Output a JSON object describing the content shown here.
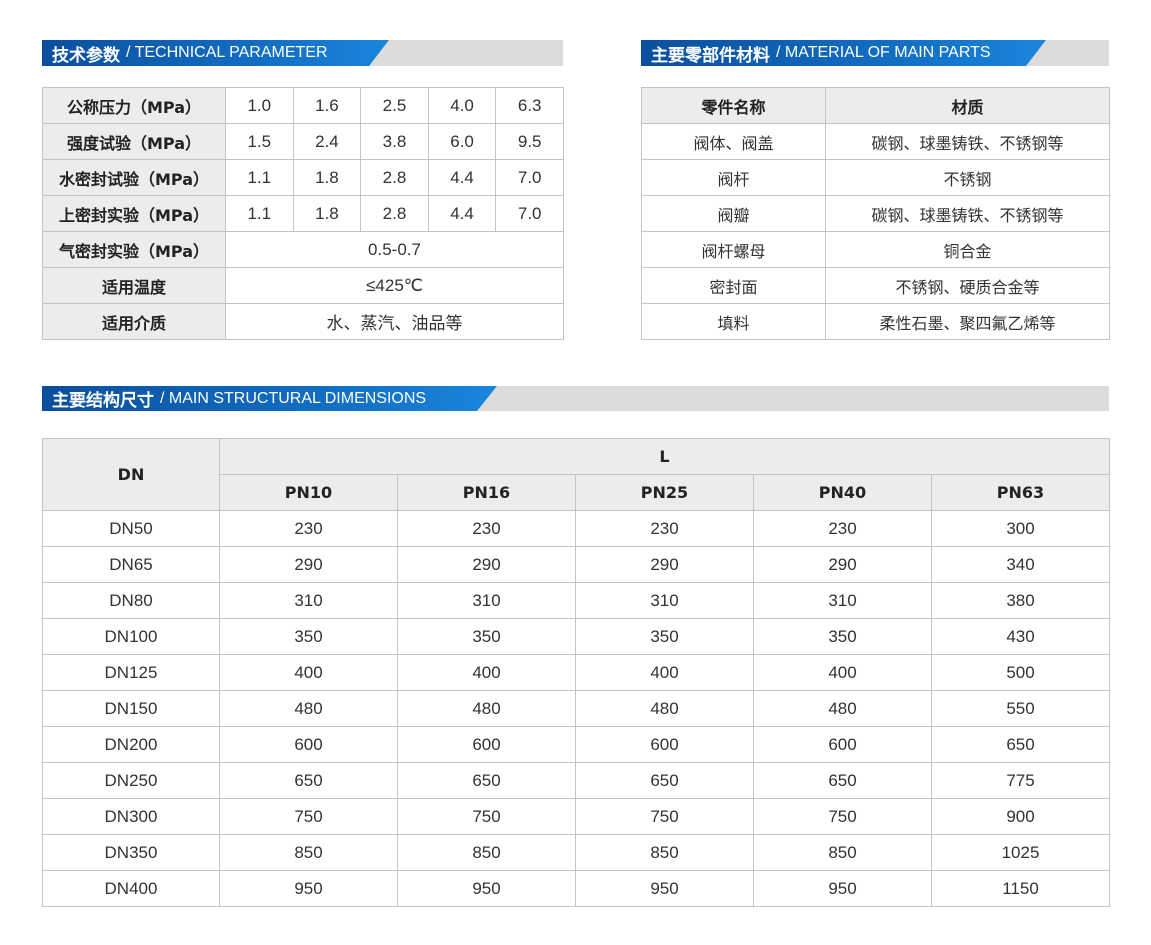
{
  "technical": {
    "title_cn": "技术参数",
    "title_en": "/ TECHNICAL PARAMETER",
    "rows": [
      {
        "label": "公称压力（MPa）",
        "values": [
          "1.0",
          "1.6",
          "2.5",
          "4.0",
          "6.3"
        ]
      },
      {
        "label": "强度试验（MPa）",
        "values": [
          "1.5",
          "2.4",
          "3.8",
          "6.0",
          "9.5"
        ]
      },
      {
        "label": "水密封试验（MPa）",
        "values": [
          "1.1",
          "1.8",
          "2.8",
          "4.4",
          "7.0"
        ]
      },
      {
        "label": "上密封实验（MPa）",
        "values": [
          "1.1",
          "1.8",
          "2.8",
          "4.4",
          "7.0"
        ]
      },
      {
        "label": "气密封实验（MPa）",
        "values": [
          "0.5-0.7"
        ]
      },
      {
        "label": "适用温度",
        "values": [
          "≤425℃"
        ]
      },
      {
        "label": "适用介质",
        "values": [
          "水、蒸汽、油品等"
        ]
      }
    ]
  },
  "materials": {
    "title_cn": "主要零部件材料",
    "title_en": "/ MATERIAL OF MAIN PARTS",
    "headers": [
      "零件名称",
      "材质"
    ],
    "rows": [
      [
        "阀体、阀盖",
        "碳钢、球墨铸铁、不锈钢等"
      ],
      [
        "阀杆",
        "不锈钢"
      ],
      [
        "阀瓣",
        "碳钢、球墨铸铁、不锈钢等"
      ],
      [
        "阀杆螺母",
        "铜合金"
      ],
      [
        "密封面",
        "不锈钢、硬质合金等"
      ],
      [
        "填料",
        "柔性石墨、聚四氟乙烯等"
      ]
    ]
  },
  "dimensions": {
    "title_cn": "主要结构尺寸",
    "title_en": "/ MAIN STRUCTURAL DIMENSIONS",
    "dn_header": "DN",
    "l_header": "L",
    "pn_headers": [
      "PN10",
      "PN16",
      "PN25",
      "PN40",
      "PN63"
    ],
    "rows": [
      [
        "DN50",
        "230",
        "230",
        "230",
        "230",
        "300"
      ],
      [
        "DN65",
        "290",
        "290",
        "290",
        "290",
        "340"
      ],
      [
        "DN80",
        "310",
        "310",
        "310",
        "310",
        "380"
      ],
      [
        "DN100",
        "350",
        "350",
        "350",
        "350",
        "430"
      ],
      [
        "DN125",
        "400",
        "400",
        "400",
        "400",
        "500"
      ],
      [
        "DN150",
        "480",
        "480",
        "480",
        "480",
        "550"
      ],
      [
        "DN200",
        "600",
        "600",
        "600",
        "600",
        "650"
      ],
      [
        "DN250",
        "650",
        "650",
        "650",
        "650",
        "775"
      ],
      [
        "DN300",
        "750",
        "750",
        "750",
        "750",
        "900"
      ],
      [
        "DN350",
        "850",
        "850",
        "850",
        "850",
        "1025"
      ],
      [
        "DN400",
        "950",
        "950",
        "950",
        "950",
        "1150"
      ]
    ]
  }
}
